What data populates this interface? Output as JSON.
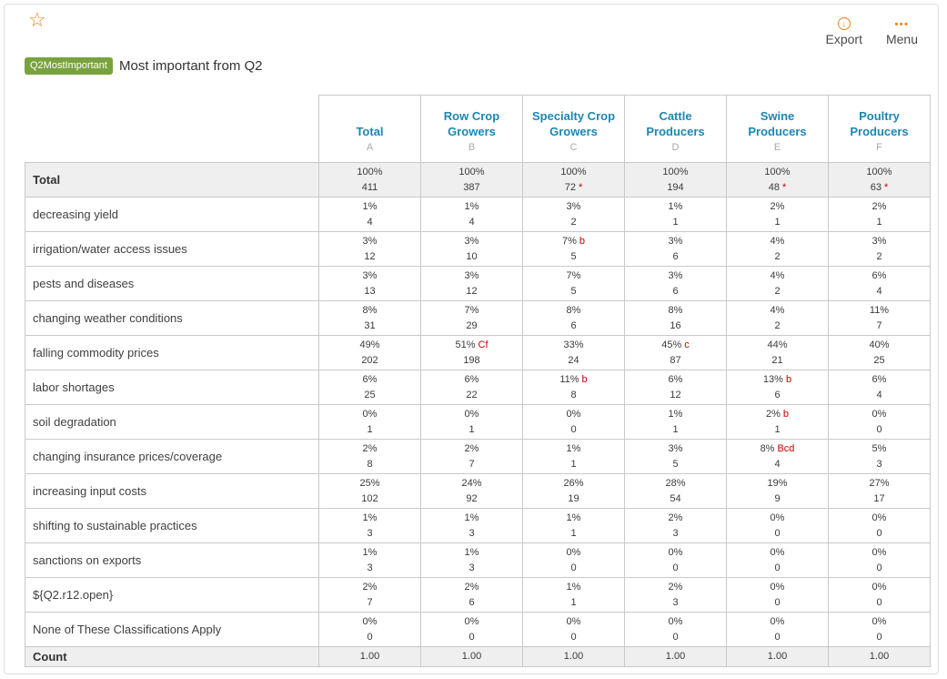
{
  "header": {
    "favorite_icon": "star-outline",
    "export_label": "Export",
    "export_icon": "circled-down-arrow",
    "menu_label": "Menu",
    "menu_icon": "ellipsis-dots",
    "badge": "Q2MostImportant",
    "title": "Most important from Q2"
  },
  "colors": {
    "accent_orange": "#F5831F",
    "header_teal": "#1B87B2",
    "significance_red": "#CC0000",
    "badge_green": "#79A23D",
    "shade_row_bg": "#F0EFEF",
    "table_border": "#C9C9C9"
  },
  "table": {
    "columns": [
      {
        "name": "Total",
        "letter": "A"
      },
      {
        "name": "Row Crop Growers",
        "letter": "B"
      },
      {
        "name": "Specialty Crop Growers",
        "letter": "C"
      },
      {
        "name": "Cattle Producers",
        "letter": "D"
      },
      {
        "name": "Swine Producers",
        "letter": "E"
      },
      {
        "name": "Poultry Producers",
        "letter": "F"
      }
    ],
    "total_row": {
      "label": "Total",
      "cells": [
        {
          "pct": "100%",
          "n": "411"
        },
        {
          "pct": "100%",
          "n": "387"
        },
        {
          "pct": "100%",
          "n": "72",
          "n_note": "*"
        },
        {
          "pct": "100%",
          "n": "194"
        },
        {
          "pct": "100%",
          "n": "48",
          "n_note": "*"
        },
        {
          "pct": "100%",
          "n": "63",
          "n_note": "*"
        }
      ]
    },
    "rows": [
      {
        "label": "decreasing yield",
        "cells": [
          {
            "pct": "1%",
            "n": "4"
          },
          {
            "pct": "1%",
            "n": "4"
          },
          {
            "pct": "3%",
            "n": "2"
          },
          {
            "pct": "1%",
            "n": "1"
          },
          {
            "pct": "2%",
            "n": "1"
          },
          {
            "pct": "2%",
            "n": "1"
          }
        ]
      },
      {
        "label": "irrigation/water access issues",
        "cells": [
          {
            "pct": "3%",
            "n": "12"
          },
          {
            "pct": "3%",
            "n": "10"
          },
          {
            "pct": "7%",
            "pct_note": "b",
            "n": "5"
          },
          {
            "pct": "3%",
            "n": "6"
          },
          {
            "pct": "4%",
            "n": "2"
          },
          {
            "pct": "3%",
            "n": "2"
          }
        ]
      },
      {
        "label": "pests and diseases",
        "cells": [
          {
            "pct": "3%",
            "n": "13"
          },
          {
            "pct": "3%",
            "n": "12"
          },
          {
            "pct": "7%",
            "n": "5"
          },
          {
            "pct": "3%",
            "n": "6"
          },
          {
            "pct": "4%",
            "n": "2"
          },
          {
            "pct": "6%",
            "n": "4"
          }
        ]
      },
      {
        "label": "changing weather conditions",
        "cells": [
          {
            "pct": "8%",
            "n": "31"
          },
          {
            "pct": "7%",
            "n": "29"
          },
          {
            "pct": "8%",
            "n": "6"
          },
          {
            "pct": "8%",
            "n": "16"
          },
          {
            "pct": "4%",
            "n": "2"
          },
          {
            "pct": "11%",
            "n": "7"
          }
        ]
      },
      {
        "label": "falling commodity prices",
        "cells": [
          {
            "pct": "49%",
            "n": "202"
          },
          {
            "pct": "51%",
            "pct_note": "Cf",
            "n": "198"
          },
          {
            "pct": "33%",
            "n": "24"
          },
          {
            "pct": "45%",
            "pct_note": "c",
            "n": "87"
          },
          {
            "pct": "44%",
            "n": "21"
          },
          {
            "pct": "40%",
            "n": "25"
          }
        ]
      },
      {
        "label": "labor shortages",
        "cells": [
          {
            "pct": "6%",
            "n": "25"
          },
          {
            "pct": "6%",
            "n": "22"
          },
          {
            "pct": "11%",
            "pct_note": "b",
            "n": "8"
          },
          {
            "pct": "6%",
            "n": "12"
          },
          {
            "pct": "13%",
            "pct_note": "b",
            "n": "6"
          },
          {
            "pct": "6%",
            "n": "4"
          }
        ]
      },
      {
        "label": "soil degradation",
        "cells": [
          {
            "pct": "0%",
            "n": "1"
          },
          {
            "pct": "0%",
            "n": "1"
          },
          {
            "pct": "0%",
            "n": "0"
          },
          {
            "pct": "1%",
            "n": "1"
          },
          {
            "pct": "2%",
            "pct_note": "b",
            "n": "1"
          },
          {
            "pct": "0%",
            "n": "0"
          }
        ]
      },
      {
        "label": "changing insurance prices/coverage",
        "cells": [
          {
            "pct": "2%",
            "n": "8"
          },
          {
            "pct": "2%",
            "n": "7"
          },
          {
            "pct": "1%",
            "n": "1"
          },
          {
            "pct": "3%",
            "n": "5"
          },
          {
            "pct": "8%",
            "pct_note": "Bcd",
            "n": "4"
          },
          {
            "pct": "5%",
            "n": "3"
          }
        ]
      },
      {
        "label": "increasing input costs",
        "cells": [
          {
            "pct": "25%",
            "n": "102"
          },
          {
            "pct": "24%",
            "n": "92"
          },
          {
            "pct": "26%",
            "n": "19"
          },
          {
            "pct": "28%",
            "n": "54"
          },
          {
            "pct": "19%",
            "n": "9"
          },
          {
            "pct": "27%",
            "n": "17"
          }
        ]
      },
      {
        "label": "shifting to sustainable practices",
        "cells": [
          {
            "pct": "1%",
            "n": "3"
          },
          {
            "pct": "1%",
            "n": "3"
          },
          {
            "pct": "1%",
            "n": "1"
          },
          {
            "pct": "2%",
            "n": "3"
          },
          {
            "pct": "0%",
            "n": "0"
          },
          {
            "pct": "0%",
            "n": "0"
          }
        ]
      },
      {
        "label": "sanctions on exports",
        "cells": [
          {
            "pct": "1%",
            "n": "3"
          },
          {
            "pct": "1%",
            "n": "3"
          },
          {
            "pct": "0%",
            "n": "0"
          },
          {
            "pct": "0%",
            "n": "0"
          },
          {
            "pct": "0%",
            "n": "0"
          },
          {
            "pct": "0%",
            "n": "0"
          }
        ]
      },
      {
        "label": "${Q2.r12.open}",
        "cells": [
          {
            "pct": "2%",
            "n": "7"
          },
          {
            "pct": "2%",
            "n": "6"
          },
          {
            "pct": "1%",
            "n": "1"
          },
          {
            "pct": "2%",
            "n": "3"
          },
          {
            "pct": "0%",
            "n": "0"
          },
          {
            "pct": "0%",
            "n": "0"
          }
        ]
      },
      {
        "label": "None of These Classifications Apply",
        "cells": [
          {
            "pct": "0%",
            "n": "0"
          },
          {
            "pct": "0%",
            "n": "0"
          },
          {
            "pct": "0%",
            "n": "0"
          },
          {
            "pct": "0%",
            "n": "0"
          },
          {
            "pct": "0%",
            "n": "0"
          },
          {
            "pct": "0%",
            "n": "0"
          }
        ]
      }
    ],
    "count_row": {
      "label": "Count",
      "values": [
        "1.00",
        "1.00",
        "1.00",
        "1.00",
        "1.00",
        "1.00"
      ]
    }
  }
}
